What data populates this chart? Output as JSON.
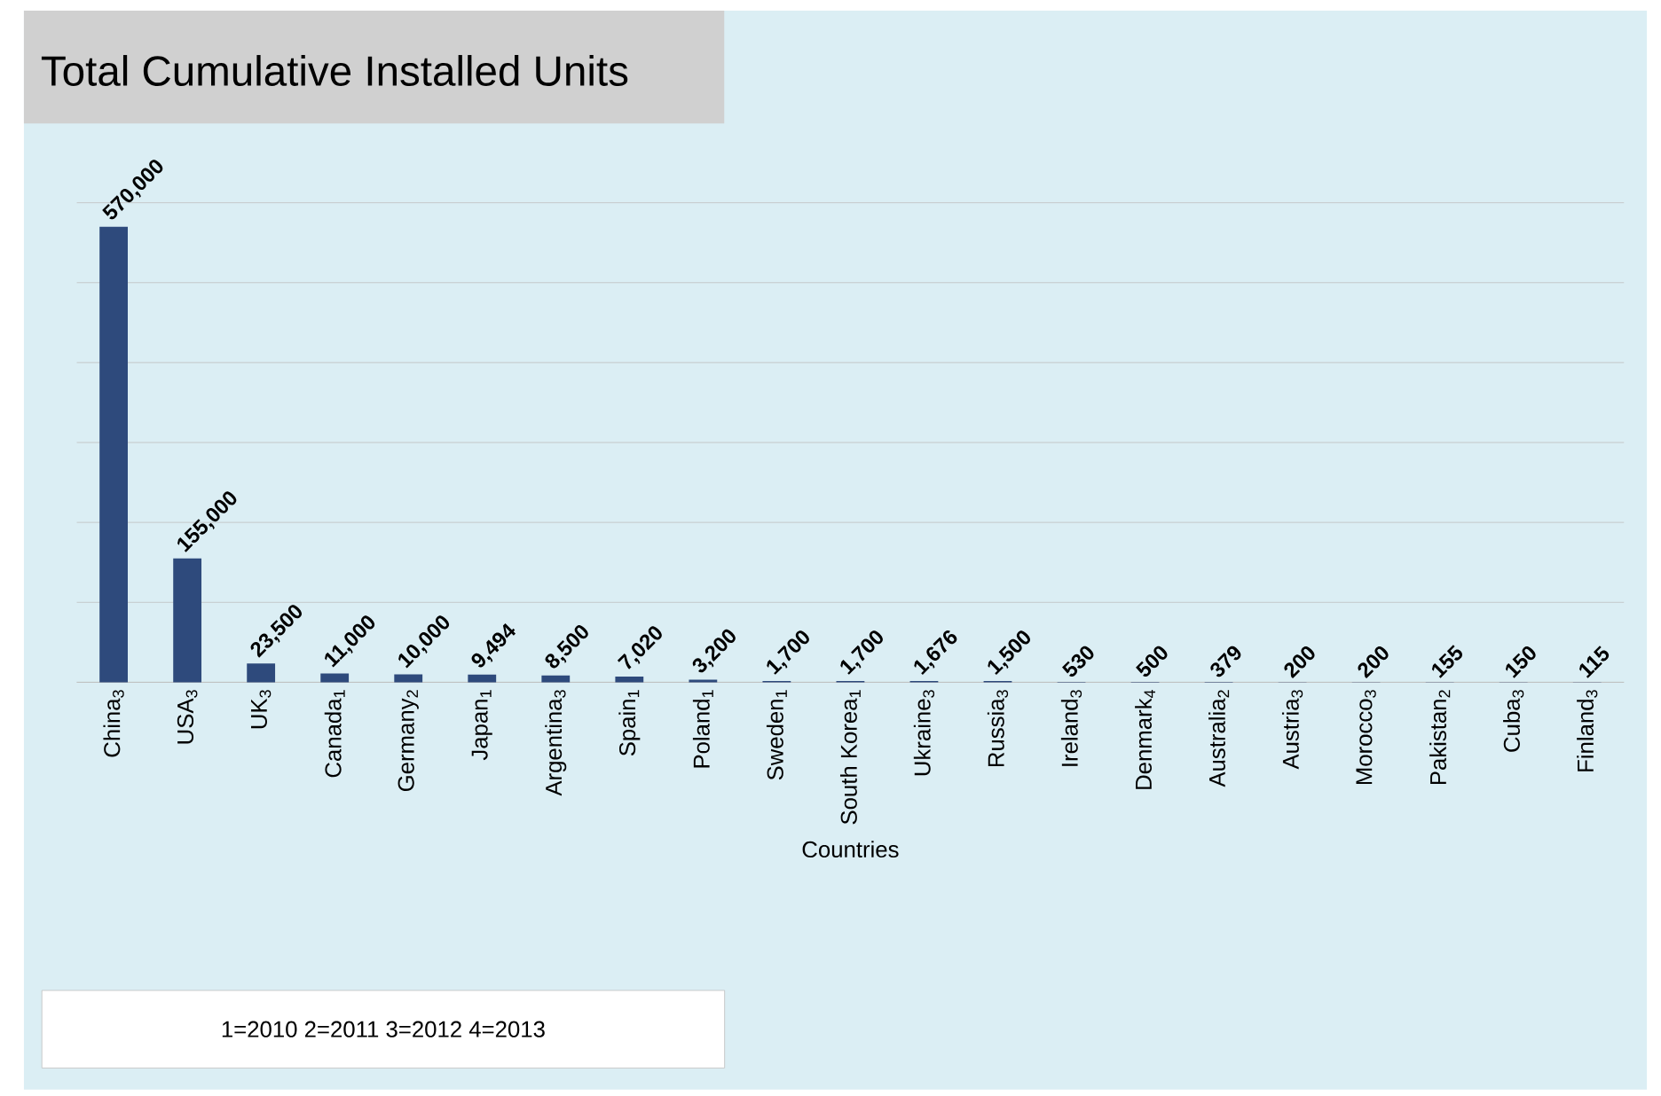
{
  "chart_data": {
    "type": "bar",
    "title": "Total Cumulative Installed Units",
    "xlabel": "Countries",
    "categories": [
      "China$_{3}$",
      "USA$_{3}$",
      "UK$_{3}$",
      "Canada$_{1}$",
      "Germany$_{2}$",
      "Japan$_{1}$",
      "Argentina$_{3}$",
      "Spain$_{1}$",
      "Poland$_{1}$",
      "Sweden$_{1}$",
      "South Korea$_{1}$",
      "Ukraine$_{3}$",
      "Russia$_{3}$",
      "Ireland$_{3}$",
      "Denmark$_{4}$",
      "Australia$_{2}$",
      "Austria$_{3}$",
      "Morocco$_{3}$",
      "Pakistan$_{2}$",
      "Cuba$_{3}$",
      "Finland$_{3}$"
    ],
    "values": [
      570000,
      155000,
      23500,
      11000,
      10000,
      9494,
      8500,
      7020,
      3200,
      1700,
      1700,
      1676,
      1500,
      530,
      500,
      379,
      200,
      200,
      155,
      150,
      115
    ],
    "color": "#2e4a7c",
    "value_labels": [
      "570,000",
      "155,000",
      "23,500",
      "11,000",
      "10,000",
      "9,494",
      "8,500",
      "7,020",
      "3,200",
      "1,700",
      "1,700",
      "1,676",
      "1,500",
      "530",
      "500",
      "379",
      "200",
      "200",
      "155",
      "150",
      "115"
    ],
    "ylim": [
      0,
      600000
    ],
    "yticks": [
      {
        "value": 0,
        "label": null
      },
      {
        "value": 100000,
        "label": null
      },
      {
        "value": 200000,
        "label": null
      },
      {
        "value": 300000,
        "label": null
      },
      {
        "value": 400000,
        "label": null
      },
      {
        "value": 500000,
        "label": null
      },
      {
        "value": 600000,
        "label": null
      }
    ],
    "tick_labels": "x",
    "grid": "y",
    "annotations": [
      "1=2010   2=2011   3=2012   4=2013"
    ]
  }
}
